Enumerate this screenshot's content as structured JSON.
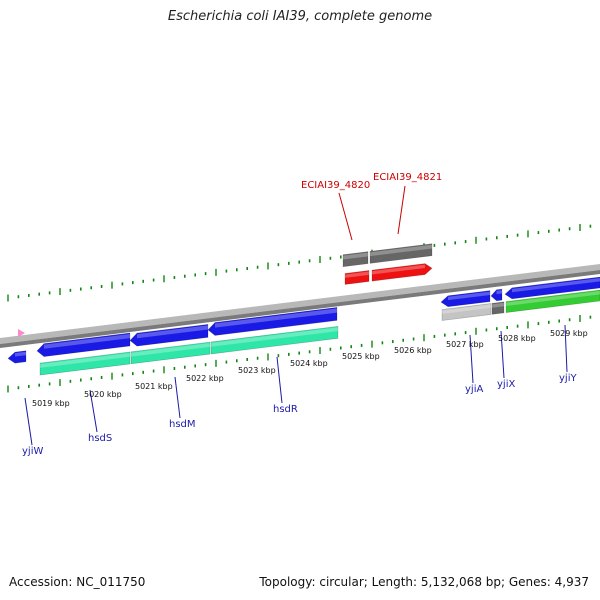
{
  "title": "Escherichia coli IAI39, complete genome",
  "footer": {
    "accession": "Accession: NC_011750",
    "summary": "Topology: circular; Length: 5,132,068 bp; Genes: 4,937"
  },
  "scale_labels": [
    "5019 kbp",
    "5020 kbp",
    "5021 kbp",
    "5022 kbp",
    "5023 kbp",
    "5024 kbp",
    "5025 kbp",
    "5026 kbp",
    "5027 kbp",
    "5028 kbp",
    "5029 kbp"
  ],
  "gene_labels": [
    {
      "text": "yjiW",
      "kind": "gene"
    },
    {
      "text": "hsdS",
      "kind": "gene"
    },
    {
      "text": "hsdM",
      "kind": "gene"
    },
    {
      "text": "hsdR",
      "kind": "gene"
    },
    {
      "text": "yjiA",
      "kind": "gene"
    },
    {
      "text": "yjiX",
      "kind": "gene"
    },
    {
      "text": "yjiY",
      "kind": "gene"
    },
    {
      "text": "ECIAI39_4820",
      "kind": "pseudo"
    },
    {
      "text": "ECIAI39_4821",
      "kind": "pseudo"
    }
  ],
  "colors": {
    "backbone": "#8a8a8a",
    "tick": "#118811",
    "cds": "#1a1ae6",
    "gene": "#2ee6a8",
    "rna": "#33cc33",
    "pseudo_cds": "#ee1111",
    "pseudo_gene": "#666666",
    "light_gene": "#c4c4c4",
    "misc": "#ff88cc",
    "gene_label": "#1a1aa8",
    "pseudo_label": "#cc0000"
  }
}
